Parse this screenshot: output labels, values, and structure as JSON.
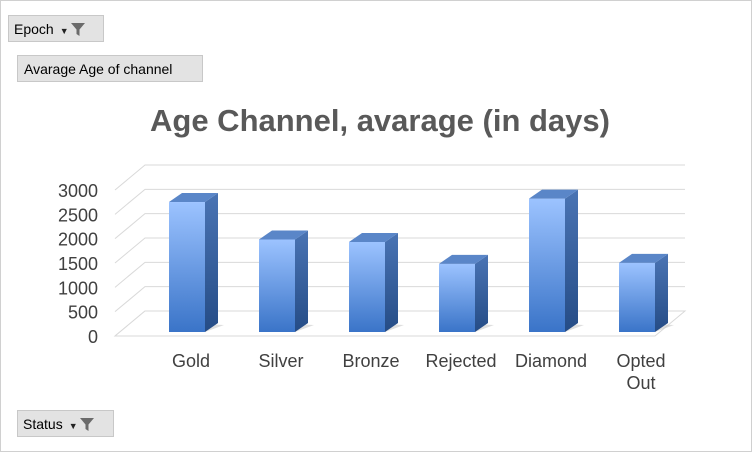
{
  "filters": {
    "epoch": {
      "label": "Epoch",
      "icon": "funnel-icon"
    },
    "status": {
      "label": "Status",
      "icon": "funnel-icon"
    }
  },
  "measure": {
    "label": "Avarage Age of channel"
  },
  "chart_data": {
    "type": "bar",
    "title": "Age Channel, avarage (in days)",
    "xlabel": "",
    "ylabel": "",
    "categories": [
      "Gold",
      "Silver",
      "Bronze",
      "Rejected",
      "Diamond",
      "Opted Out"
    ],
    "values": [
      2650,
      1880,
      1830,
      1380,
      2720,
      1400
    ],
    "ylim": [
      0,
      3000
    ],
    "yticks": [
      0,
      500,
      1000,
      1500,
      2000,
      2500,
      3000
    ],
    "grid": true,
    "legend": "none",
    "style": "3d-column",
    "colors": {
      "bar_top": "#9cc3ff",
      "bar_bottom": "#3a74c8",
      "bar_side": "#2f5d9e",
      "bar_cap": "#5a86c8",
      "grid": "#d9d9d9",
      "title": "#595959",
      "text": "#404040"
    }
  }
}
